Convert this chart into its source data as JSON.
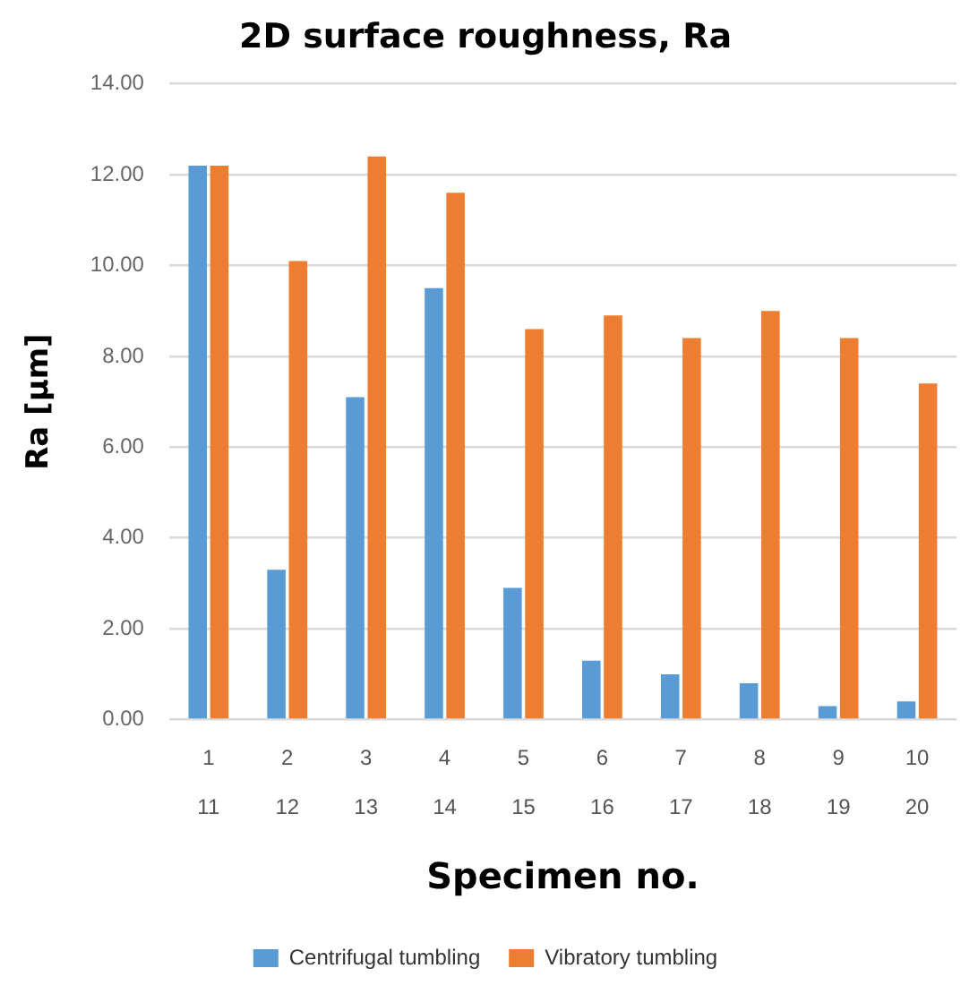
{
  "chart_data": {
    "type": "bar",
    "title": "2D surface roughness, Ra",
    "xlabel": "Specimen no.",
    "ylabel": "Ra [µm]",
    "categories": [
      "1\n11",
      "2\n12",
      "3\n13",
      "4\n14",
      "5\n15",
      "6\n16",
      "7\n17",
      "8\n18",
      "9\n19",
      "10\n20"
    ],
    "series": [
      {
        "name": "Centrifugal tumbling",
        "color": "#5b9bd5",
        "values": [
          12.2,
          3.3,
          7.1,
          9.5,
          2.9,
          1.3,
          1.0,
          0.8,
          0.3,
          0.4
        ]
      },
      {
        "name": "Vibratory tumbling",
        "color": "#ed7d31",
        "values": [
          12.2,
          10.1,
          12.4,
          11.6,
          8.6,
          8.9,
          8.4,
          9.0,
          8.4,
          7.4
        ]
      }
    ],
    "ylim": [
      0,
      14
    ],
    "yticks": [
      {
        "value": 0,
        "label": "0.00"
      },
      {
        "value": 2,
        "label": "2.00"
      },
      {
        "value": 4,
        "label": "4.00"
      },
      {
        "value": 6,
        "label": "6.00"
      },
      {
        "value": 8,
        "label": "8.00"
      },
      {
        "value": 10,
        "label": "10.00"
      },
      {
        "value": 12,
        "label": "12.00"
      },
      {
        "value": 14,
        "label": "14.00"
      }
    ],
    "grid": "y",
    "legend": "bottom"
  }
}
